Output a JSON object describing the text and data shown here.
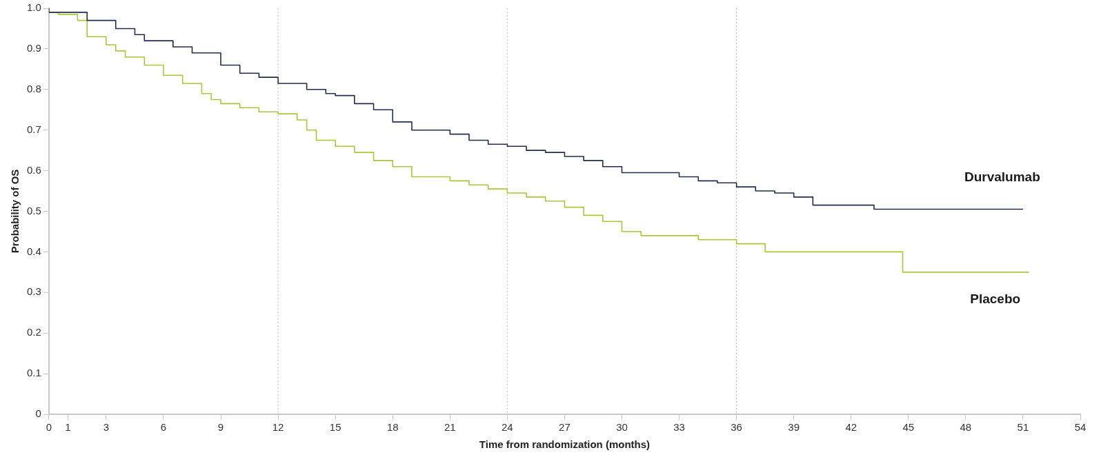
{
  "chart_data": {
    "type": "step",
    "xlabel": "Time from randomization (months)",
    "ylabel": "Probability of OS",
    "xlim": [
      0,
      54
    ],
    "xticks": [
      0,
      1,
      3,
      6,
      9,
      12,
      15,
      18,
      21,
      24,
      27,
      30,
      33,
      36,
      39,
      42,
      45,
      48,
      51,
      54
    ],
    "ylim": [
      0,
      1
    ],
    "yticks": [
      0,
      0.1,
      0.2,
      0.3,
      0.4,
      0.5,
      0.6,
      0.7,
      0.8,
      0.9,
      {
        "value": 1,
        "label": "1.0"
      }
    ],
    "grid": false,
    "legend": false,
    "line_style": "solid",
    "ref_lines": [
      {
        "axis": "x",
        "value": 12,
        "color": "#bbbbbb",
        "line_style": "dotted"
      },
      {
        "axis": "x",
        "value": 24,
        "color": "#bbbbbb",
        "line_style": "dotted"
      },
      {
        "axis": "x",
        "value": 36,
        "color": "#bbbbbb",
        "line_style": "dotted"
      }
    ],
    "series": [
      {
        "name": "Durvalumab",
        "color": "#1f2d4e",
        "x": [
          0,
          2,
          3.5,
          4.5,
          5,
          6.5,
          7.5,
          9,
          10,
          11,
          12,
          13.5,
          14.5,
          15,
          16,
          17,
          18,
          19,
          21,
          22,
          23,
          24,
          25,
          26,
          27,
          28,
          29,
          30,
          33,
          34,
          35,
          36,
          37,
          38,
          39,
          40,
          43.2,
          44,
          51
        ],
        "values": [
          1,
          0.99,
          0.97,
          0.95,
          0.935,
          0.92,
          0.905,
          0.89,
          0.86,
          0.84,
          0.83,
          0.815,
          0.8,
          0.79,
          0.785,
          0.765,
          0.75,
          0.72,
          0.7,
          0.69,
          0.675,
          0.665,
          0.66,
          0.65,
          0.645,
          0.635,
          0.625,
          0.61,
          0.595,
          0.585,
          0.575,
          0.57,
          0.56,
          0.55,
          0.545,
          0.535,
          0.515,
          0.505,
          0.505
        ]
      },
      {
        "name": "Placebo",
        "color": "#a8c83a",
        "x": [
          0,
          0.5,
          1.5,
          2,
          3,
          3.5,
          4,
          5,
          6,
          7,
          8,
          8.5,
          9,
          10,
          11,
          12,
          13,
          13.5,
          14,
          15,
          16,
          17,
          18,
          19,
          21,
          22,
          23,
          24,
          25,
          26,
          27,
          28,
          29,
          30,
          31,
          34,
          36,
          37.5,
          44.7,
          45.6,
          51.3
        ],
        "values": [
          1,
          0.99,
          0.985,
          0.97,
          0.93,
          0.91,
          0.895,
          0.88,
          0.86,
          0.835,
          0.815,
          0.79,
          0.775,
          0.765,
          0.755,
          0.745,
          0.74,
          0.725,
          0.7,
          0.675,
          0.66,
          0.645,
          0.625,
          0.61,
          0.585,
          0.575,
          0.565,
          0.555,
          0.545,
          0.535,
          0.525,
          0.51,
          0.49,
          0.475,
          0.45,
          0.44,
          0.43,
          0.42,
          0.4,
          0.35,
          0.35
        ]
      }
    ]
  }
}
